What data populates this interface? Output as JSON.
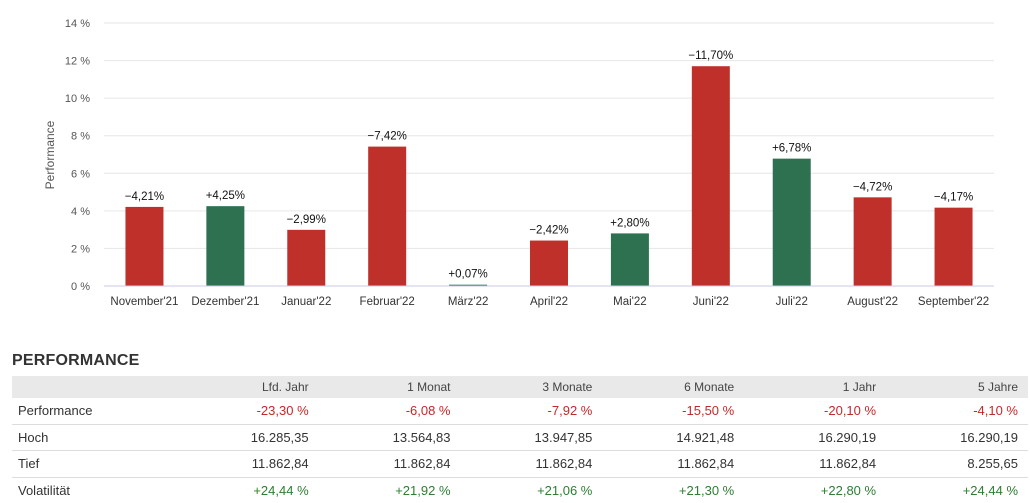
{
  "colors": {
    "negative": "#c0302a",
    "positive": "#2e7150",
    "grid": "#e6e6e6",
    "axis": "#c8c8e6",
    "neg_text": "#c62828",
    "pos_text": "#2e7d32"
  },
  "chart_data": {
    "type": "bar",
    "ylabel": "Performance",
    "ylim": [
      0,
      14
    ],
    "y_ticks": [
      "0 %",
      "2 %",
      "4 %",
      "6 %",
      "8 %",
      "10 %",
      "12 %",
      "14 %"
    ],
    "grid": true,
    "categories": [
      "November'21",
      "Dezember'21",
      "Januar'22",
      "Februar'22",
      "März'22",
      "April'22",
      "Mai'22",
      "Juni'22",
      "Juli'22",
      "August'22",
      "September'22"
    ],
    "values": [
      4.21,
      4.25,
      2.99,
      7.42,
      0.07,
      2.42,
      2.8,
      11.7,
      6.78,
      4.72,
      4.17
    ],
    "signs": [
      "neg",
      "pos",
      "neg",
      "neg",
      "pos",
      "neg",
      "pos",
      "neg",
      "pos",
      "neg",
      "neg"
    ],
    "data_labels": [
      "−4,21%",
      "+4,25%",
      "−2,99%",
      "−7,42%",
      "+0,07%",
      "−2,42%",
      "+2,80%",
      "−11,70%",
      "+6,78%",
      "−4,72%",
      "−4,17%"
    ]
  },
  "table": {
    "title": "PERFORMANCE",
    "headers": [
      "",
      "Lfd. Jahr",
      "1 Monat",
      "3 Monate",
      "6 Monate",
      "1 Jahr",
      "5 Jahre"
    ],
    "rows": [
      {
        "label": "Performance",
        "tone": "neg",
        "values": [
          "-23,30 %",
          "-6,08 %",
          "-7,92 %",
          "-15,50 %",
          "-20,10 %",
          "-4,10 %"
        ]
      },
      {
        "label": "Hoch",
        "tone": "",
        "values": [
          "16.285,35",
          "13.564,83",
          "13.947,85",
          "14.921,48",
          "16.290,19",
          "16.290,19"
        ]
      },
      {
        "label": "Tief",
        "tone": "",
        "values": [
          "11.862,84",
          "11.862,84",
          "11.862,84",
          "11.862,84",
          "11.862,84",
          "8.255,65"
        ]
      },
      {
        "label": "Volatilität",
        "tone": "pos",
        "values": [
          "+24,44 %",
          "+21,92 %",
          "+21,06 %",
          "+21,30 %",
          "+22,80 %",
          "+24,44 %"
        ]
      }
    ]
  }
}
